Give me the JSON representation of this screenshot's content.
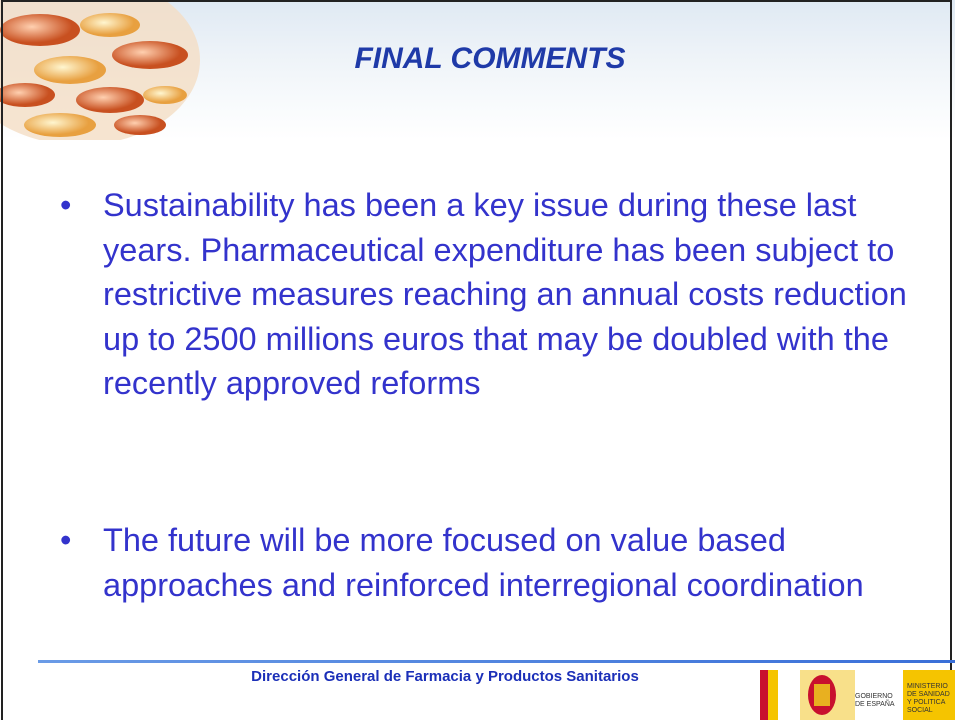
{
  "header": {
    "title": "FINAL COMMENTS"
  },
  "bullets": [
    "Sustainability has been a key issue during these last years. Pharmaceutical expenditure has been subject to restrictive measures reaching an annual costs reduction up to 2500 millions euros that may be doubled with the recently approved reforms",
    "The future will be more focused on value based approaches and reinforced interregional coordination"
  ],
  "footer": {
    "text": "Dirección General de Farmacia y Productos Sanitarios",
    "logo": {
      "government": [
        "GOBIERNO",
        "DE ESPAÑA"
      ],
      "ministry": [
        "MINISTERIO",
        "DE SANIDAD",
        "Y POLITICA",
        "SOCIAL"
      ]
    }
  }
}
